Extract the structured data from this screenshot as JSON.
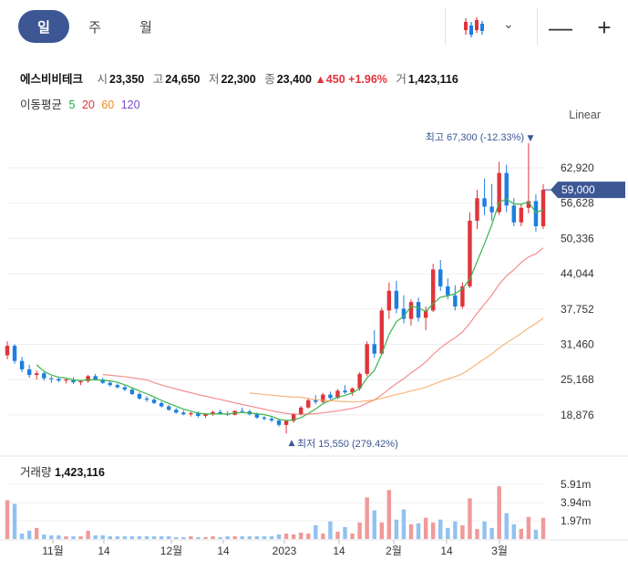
{
  "periods": [
    {
      "label": "일",
      "active": true
    },
    {
      "label": "주",
      "active": false
    },
    {
      "label": "월",
      "active": false
    }
  ],
  "toolbar": {
    "chart_type_icon": "candlestick-icon",
    "zoom_out": "—",
    "zoom_in": "+"
  },
  "stock": {
    "name": "에스비비테크",
    "open_label": "시",
    "open": "23,350",
    "high_label": "고",
    "high": "24,650",
    "low_label": "저",
    "low": "22,300",
    "close_label": "종",
    "close": "23,400",
    "change": "▲450",
    "change_pct": "+1.96%",
    "volume_label": "거",
    "volume": "1,423,116"
  },
  "ma": {
    "label": "이동평균",
    "periods": [
      "5",
      "20",
      "60",
      "120"
    ],
    "colors": [
      "#1fa84a",
      "#e0343b",
      "#f08a24",
      "#7e4cc9"
    ]
  },
  "scale_mode": "Linear",
  "colors": {
    "up": "#e0343b",
    "down": "#1c7fe0",
    "accent": "#3c5794",
    "ma5": "#3cb44b",
    "ma20": "#f06a6a",
    "ma60": "#f5a25a"
  },
  "chart_data": {
    "type": "candlestick",
    "y_ticks": [
      "62,920",
      "56,628",
      "50,336",
      "44,044",
      "37,752",
      "31,460",
      "25,168",
      "18,876"
    ],
    "current_price_label": "59,000",
    "x_ticks": [
      "11월",
      "14",
      "12월",
      "14",
      "2023",
      "14",
      "2월",
      "14",
      "3월"
    ],
    "high_annotation": "최고 67,300 (-12.33%)",
    "low_annotation": "최저 15,550 (279.42%)",
    "volume_ticks": [
      "5.91m",
      "3.94m",
      "1.97m"
    ],
    "volume_label": "거래량",
    "volume_value": "1,423,116",
    "candles": [
      [
        29500,
        32000,
        28800,
        31200
      ],
      [
        31200,
        31500,
        28000,
        28500
      ],
      [
        28500,
        29200,
        26500,
        27000
      ],
      [
        27000,
        27800,
        25500,
        26000
      ],
      [
        26000,
        26800,
        25200,
        26300
      ],
      [
        26300,
        26600,
        25000,
        25400
      ],
      [
        25400,
        25800,
        24600,
        25300
      ],
      [
        25300,
        25700,
        24700,
        25000
      ],
      [
        25000,
        25300,
        24500,
        25200
      ],
      [
        25200,
        25600,
        24400,
        24700
      ],
      [
        24700,
        25100,
        24200,
        24900
      ],
      [
        24900,
        26000,
        24600,
        25800
      ],
      [
        25800,
        26200,
        25000,
        25200
      ],
      [
        25200,
        25500,
        24400,
        24600
      ],
      [
        24600,
        24900,
        23900,
        24200
      ],
      [
        24200,
        24500,
        23600,
        23800
      ],
      [
        23800,
        24100,
        23100,
        23400
      ],
      [
        23400,
        23700,
        22400,
        22600
      ],
      [
        22600,
        22900,
        21600,
        21800
      ],
      [
        21800,
        22200,
        21200,
        21600
      ],
      [
        21600,
        21900,
        20800,
        21000
      ],
      [
        21000,
        21300,
        20200,
        20400
      ],
      [
        20400,
        20700,
        19600,
        19800
      ],
      [
        19800,
        20100,
        19100,
        19300
      ],
      [
        19300,
        19700,
        18800,
        19000
      ],
      [
        19000,
        19400,
        18600,
        19200
      ],
      [
        19200,
        19500,
        18400,
        18700
      ],
      [
        18700,
        19200,
        18300,
        19000
      ],
      [
        19000,
        19600,
        18700,
        19400
      ],
      [
        19400,
        19800,
        18900,
        19100
      ],
      [
        19100,
        19500,
        18700,
        18900
      ],
      [
        18900,
        19700,
        18800,
        19600
      ],
      [
        19600,
        20200,
        19200,
        19500
      ],
      [
        19500,
        19800,
        18800,
        19000
      ],
      [
        19000,
        19300,
        18200,
        18400
      ],
      [
        18400,
        18700,
        17900,
        18200
      ],
      [
        18200,
        18500,
        17600,
        17900
      ],
      [
        17900,
        18200,
        16800,
        17100
      ],
      [
        17100,
        18000,
        15550,
        17800
      ],
      [
        17800,
        19200,
        17500,
        19000
      ],
      [
        19000,
        20500,
        18800,
        20200
      ],
      [
        20200,
        21800,
        20000,
        21500
      ],
      [
        21500,
        22400,
        20800,
        21200
      ],
      [
        21200,
        22800,
        21000,
        22500
      ],
      [
        22500,
        23000,
        21600,
        21900
      ],
      [
        21900,
        23500,
        21700,
        23200
      ],
      [
        23200,
        24200,
        22600,
        22900
      ],
      [
        22900,
        23800,
        22300,
        23600
      ],
      [
        23600,
        26500,
        23200,
        26200
      ],
      [
        26200,
        32000,
        25800,
        31500
      ],
      [
        31500,
        34000,
        29000,
        29800
      ],
      [
        29800,
        38000,
        29500,
        37500
      ],
      [
        37500,
        42500,
        36000,
        41000
      ],
      [
        41000,
        42800,
        37000,
        37800
      ],
      [
        37800,
        40200,
        35200,
        36000
      ],
      [
        36000,
        39500,
        34800,
        39000
      ],
      [
        39000,
        39800,
        35500,
        36200
      ],
      [
        36200,
        38200,
        34000,
        37500
      ],
      [
        37500,
        45800,
        37200,
        44800
      ],
      [
        44800,
        46500,
        41000,
        41800
      ],
      [
        41800,
        43200,
        39500,
        40200
      ],
      [
        40200,
        42000,
        37500,
        38200
      ],
      [
        38200,
        42500,
        37800,
        41800
      ],
      [
        41800,
        55000,
        41500,
        53500
      ],
      [
        53500,
        59000,
        52000,
        57500
      ],
      [
        57500,
        61000,
        54500,
        56000
      ],
      [
        56000,
        60000,
        53500,
        55000
      ],
      [
        55000,
        64000,
        54500,
        62000
      ],
      [
        62000,
        63500,
        55000,
        56200
      ],
      [
        56200,
        57500,
        52500,
        53200
      ],
      [
        53200,
        56500,
        52500,
        55800
      ],
      [
        55800,
        67300,
        54800,
        57000
      ],
      [
        57000,
        58200,
        51500,
        52500
      ],
      [
        52500,
        60000,
        52000,
        59000
      ]
    ],
    "volumes": [
      4.2,
      3.8,
      0.6,
      0.9,
      1.2,
      0.5,
      0.4,
      0.4,
      0.3,
      0.3,
      0.3,
      0.9,
      0.4,
      0.4,
      0.3,
      0.3,
      0.3,
      0.3,
      0.3,
      0.3,
      0.3,
      0.3,
      0.3,
      0.2,
      0.2,
      0.3,
      0.2,
      0.2,
      0.3,
      0.2,
      0.3,
      0.3,
      0.3,
      0.3,
      0.3,
      0.3,
      0.3,
      0.5,
      0.6,
      0.5,
      0.7,
      0.6,
      1.5,
      0.6,
      1.9,
      0.8,
      1.3,
      0.6,
      1.8,
      4.5,
      3.1,
      1.8,
      5.3,
      2.1,
      3.2,
      1.6,
      1.7,
      2.3,
      1.8,
      2.1,
      1.2,
      1.9,
      1.5,
      4.4,
      1.1,
      1.9,
      1.2,
      5.7,
      2.8,
      1.6,
      1.1,
      2.4,
      1.0,
      2.3
    ]
  }
}
